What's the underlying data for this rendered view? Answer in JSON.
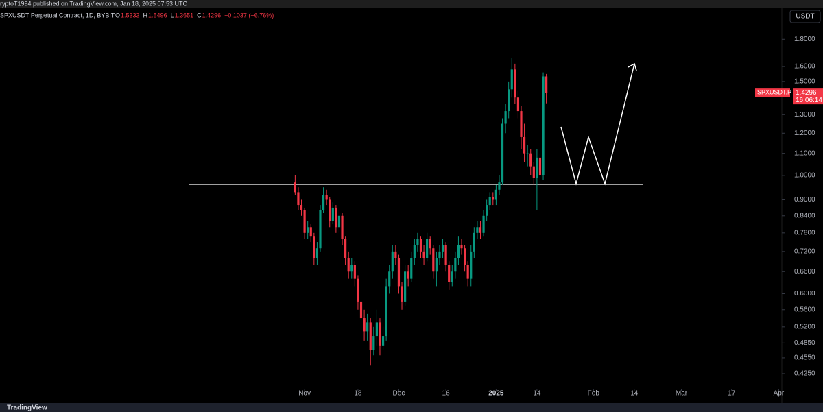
{
  "header": {
    "publisher": "ryptoT1994 published on TradingView.com, Jan 18, 2025 07:53 UTC"
  },
  "chart_data": {
    "type": "candlestick",
    "title": "SPXUSDT Perpetual Contract, 1D, BYBIT",
    "legend_keys": [
      "O",
      "H",
      "L",
      "C"
    ],
    "change_label": "−0.1037 (−6.76%)",
    "currency": "USDT",
    "symbol_label": "SPXUSDT.P",
    "countdown": "16:06:14",
    "up_color": "#089981",
    "down_color": "#f23645",
    "log_scale": true,
    "x": [
      -3,
      -2,
      -1,
      0,
      1,
      2,
      3,
      4,
      5,
      6,
      7,
      8,
      9,
      10,
      11,
      12,
      13,
      14,
      15,
      16,
      17,
      18,
      19,
      20,
      21,
      22,
      23,
      24,
      25,
      26,
      27,
      28,
      29,
      30,
      31,
      32,
      33,
      34,
      35,
      36,
      37,
      38,
      39,
      40,
      41,
      42,
      43,
      44,
      45,
      46,
      47,
      48,
      49,
      50,
      51,
      52,
      53,
      54,
      55,
      56,
      57,
      58,
      59,
      60,
      61,
      62,
      63,
      64,
      65,
      66,
      67,
      68,
      69,
      70,
      71,
      72,
      73,
      74,
      75,
      76,
      77
    ],
    "open": [
      0.97,
      0.93,
      0.88,
      0.86,
      0.78,
      0.8,
      0.77,
      0.7,
      0.73,
      0.86,
      0.92,
      0.9,
      0.82,
      0.87,
      0.8,
      0.84,
      0.76,
      0.7,
      0.66,
      0.68,
      0.64,
      0.58,
      0.54,
      0.51,
      0.53,
      0.47,
      0.5,
      0.53,
      0.48,
      0.5,
      0.62,
      0.66,
      0.72,
      0.7,
      0.62,
      0.58,
      0.66,
      0.64,
      0.7,
      0.74,
      0.76,
      0.72,
      0.7,
      0.76,
      0.73,
      0.66,
      0.7,
      0.72,
      0.74,
      0.68,
      0.63,
      0.66,
      0.7,
      0.74,
      0.73,
      0.68,
      0.64,
      0.72,
      0.78,
      0.8,
      0.78,
      0.84,
      0.88,
      0.91,
      0.9,
      0.94,
      0.97,
      1.25,
      1.32,
      1.45,
      1.58,
      1.4,
      1.32,
      1.18,
      1.1,
      1.1,
      1.04,
      0.99,
      1.08,
      1.0,
      1.5333
    ],
    "close": [
      0.93,
      0.88,
      0.86,
      0.78,
      0.8,
      0.77,
      0.7,
      0.73,
      0.86,
      0.92,
      0.9,
      0.82,
      0.87,
      0.8,
      0.84,
      0.76,
      0.7,
      0.66,
      0.68,
      0.64,
      0.58,
      0.54,
      0.51,
      0.53,
      0.47,
      0.5,
      0.53,
      0.48,
      0.5,
      0.62,
      0.66,
      0.72,
      0.7,
      0.62,
      0.58,
      0.66,
      0.64,
      0.7,
      0.74,
      0.76,
      0.72,
      0.7,
      0.76,
      0.73,
      0.66,
      0.7,
      0.72,
      0.74,
      0.68,
      0.63,
      0.66,
      0.7,
      0.74,
      0.73,
      0.68,
      0.64,
      0.72,
      0.78,
      0.8,
      0.78,
      0.84,
      0.88,
      0.91,
      0.9,
      0.94,
      0.97,
      1.25,
      1.32,
      1.45,
      1.58,
      1.4,
      1.32,
      1.18,
      1.1,
      1.1,
      1.04,
      0.99,
      1.08,
      1.0,
      1.5333,
      1.4296
    ],
    "high": [
      1.0,
      0.95,
      0.9,
      0.87,
      0.82,
      0.81,
      0.78,
      0.75,
      0.88,
      0.95,
      0.94,
      0.91,
      0.89,
      0.88,
      0.86,
      0.85,
      0.77,
      0.72,
      0.7,
      0.69,
      0.65,
      0.6,
      0.56,
      0.55,
      0.54,
      0.52,
      0.56,
      0.54,
      0.52,
      0.64,
      0.68,
      0.74,
      0.74,
      0.71,
      0.63,
      0.68,
      0.68,
      0.72,
      0.76,
      0.78,
      0.77,
      0.74,
      0.78,
      0.77,
      0.74,
      0.72,
      0.74,
      0.76,
      0.75,
      0.69,
      0.68,
      0.72,
      0.77,
      0.76,
      0.74,
      0.69,
      0.74,
      0.8,
      0.82,
      0.82,
      0.86,
      0.9,
      0.93,
      0.93,
      0.96,
      1.0,
      1.28,
      1.36,
      1.5,
      1.66,
      1.62,
      1.44,
      1.35,
      1.25,
      1.14,
      1.12,
      1.06,
      1.12,
      1.1,
      1.56,
      1.5496
    ],
    "low": [
      0.92,
      0.86,
      0.84,
      0.76,
      0.76,
      0.75,
      0.68,
      0.68,
      0.72,
      0.85,
      0.88,
      0.8,
      0.81,
      0.78,
      0.78,
      0.74,
      0.68,
      0.64,
      0.64,
      0.62,
      0.56,
      0.52,
      0.49,
      0.49,
      0.44,
      0.46,
      0.48,
      0.46,
      0.47,
      0.49,
      0.6,
      0.64,
      0.68,
      0.6,
      0.56,
      0.57,
      0.62,
      0.63,
      0.68,
      0.72,
      0.7,
      0.68,
      0.69,
      0.71,
      0.64,
      0.62,
      0.68,
      0.7,
      0.66,
      0.61,
      0.62,
      0.64,
      0.68,
      0.71,
      0.66,
      0.62,
      0.62,
      0.7,
      0.76,
      0.76,
      0.77,
      0.82,
      0.86,
      0.88,
      0.88,
      0.92,
      0.96,
      1.2,
      1.28,
      1.4,
      1.36,
      1.28,
      1.12,
      1.06,
      1.04,
      1.0,
      0.96,
      0.86,
      0.95,
      0.98,
      1.3651
    ],
    "ylim": [
      0.397,
      2.04
    ],
    "yticks": [
      {
        "value": 1.8,
        "label": "1.8000"
      },
      {
        "value": 1.6,
        "label": "1.6000"
      },
      {
        "value": 1.5,
        "label": "1.5000"
      },
      {
        "value": 1.3,
        "label": "1.3000"
      },
      {
        "value": 1.2,
        "label": "1.2000"
      },
      {
        "value": 1.1,
        "label": "1.1000"
      },
      {
        "value": 1.0,
        "label": "1.0000"
      },
      {
        "value": 0.9,
        "label": "0.9000"
      },
      {
        "value": 0.84,
        "label": "0.8400"
      },
      {
        "value": 0.78,
        "label": "0.7800"
      },
      {
        "value": 0.72,
        "label": "0.7200"
      },
      {
        "value": 0.66,
        "label": "0.6600"
      },
      {
        "value": 0.6,
        "label": "0.6000"
      },
      {
        "value": 0.56,
        "label": "0.5600"
      },
      {
        "value": 0.52,
        "label": "0.5200"
      },
      {
        "value": 0.485,
        "label": "0.4850"
      },
      {
        "value": 0.455,
        "label": "0.4550"
      },
      {
        "value": 0.425,
        "label": "0.4250"
      }
    ],
    "xlim": [
      -97,
      152
    ],
    "xticks": [
      {
        "value": 0,
        "label": "Nov"
      },
      {
        "value": 17,
        "label": "18"
      },
      {
        "value": 30,
        "label": "Dec"
      },
      {
        "value": 45,
        "label": "16"
      },
      {
        "value": 61,
        "label": "2025"
      },
      {
        "value": 74,
        "label": "14"
      },
      {
        "value": 92,
        "label": "Feb"
      },
      {
        "value": 105,
        "label": "14"
      },
      {
        "value": 120,
        "label": "Mar"
      },
      {
        "value": 136,
        "label": "17"
      },
      {
        "value": 151,
        "label": "Apr"
      }
    ]
  },
  "footer": {
    "brand": "TradingView"
  }
}
